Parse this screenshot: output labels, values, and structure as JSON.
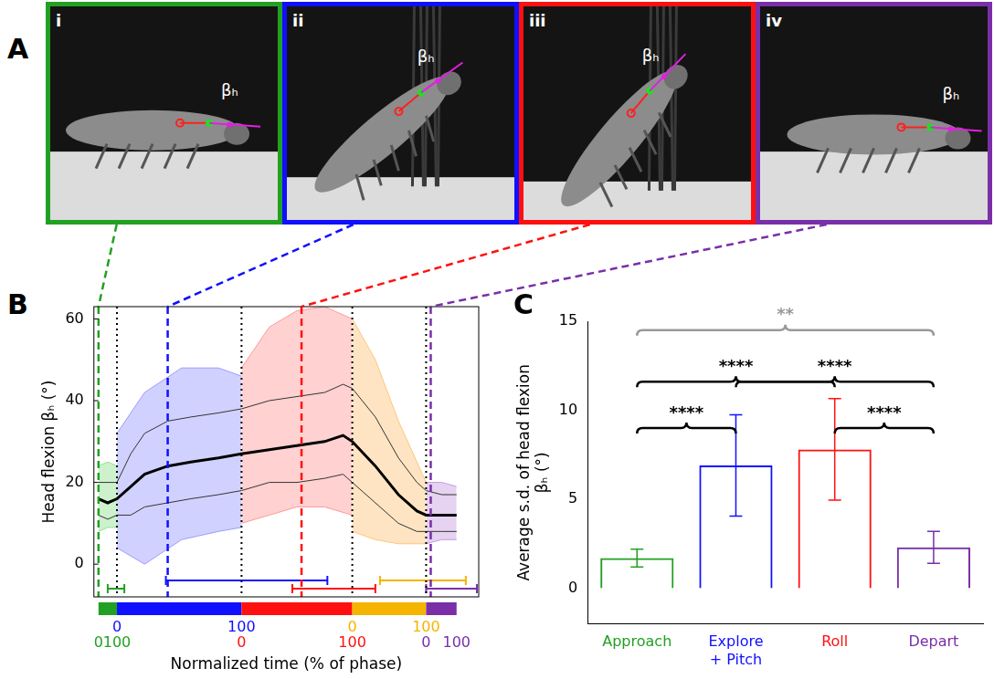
{
  "photos": {
    "panel": "A",
    "angle_label": "βₕ",
    "frames": [
      {
        "label": "i",
        "color": "#22a022"
      },
      {
        "label": "ii",
        "color": "#1010ff"
      },
      {
        "label": "iii",
        "color": "#ff1010"
      },
      {
        "label": "iv",
        "color": "#7a2fa8"
      }
    ]
  },
  "chart_data": [
    {
      "panel": "B",
      "type": "line",
      "x_label": "Normalized time (% of phase)",
      "y_label": "Head flexion βₕ (°)",
      "xlim": [
        -5,
        412
      ],
      "ylim": [
        -8,
        63
      ],
      "yticks": [
        0,
        20,
        40,
        60
      ],
      "tick_labels": "y",
      "grid": false,
      "mean": {
        "color": "#000000",
        "x": [
          0,
          10,
          20,
          35,
          50,
          75,
          100,
          130,
          155,
          185,
          215,
          245,
          265,
          275,
          300,
          325,
          345,
          355,
          372,
          388
        ],
        "values": [
          16,
          15,
          16,
          19,
          22,
          24,
          25,
          26,
          27,
          28,
          29,
          30,
          31.5,
          30,
          24,
          17,
          13,
          12,
          12,
          12
        ],
        "sd_color": "#333333",
        "sd_upper": [
          20,
          20,
          20,
          27,
          32,
          35,
          36,
          37,
          38,
          40,
          41,
          42,
          44,
          43,
          36,
          26,
          20,
          18,
          17,
          17
        ],
        "sd_lower": [
          12,
          11,
          12,
          12,
          14,
          15,
          16,
          17,
          18,
          20,
          20,
          21,
          22,
          20,
          15,
          10,
          8,
          8,
          8,
          8
        ]
      },
      "phases": [
        {
          "color": "#22a022",
          "light_color": "#8fe08f",
          "start": 0,
          "end": 20,
          "start_label": "0",
          "end_label": "100",
          "trial_range": {
            "x": [
              0,
              10,
              20
            ],
            "low": [
              8,
              9,
              9
            ],
            "high": [
              24,
              25,
              24
            ]
          },
          "timing_range": {
            "start": 10,
            "end": 28,
            "y": -6
          }
        },
        {
          "color": "#1010ff",
          "light_color": "#9a9aff",
          "start": 20,
          "end": 155,
          "start_label": "0",
          "end_label": "100",
          "trial_range": {
            "x": [
              20,
              50,
              90,
              130,
              155
            ],
            "low": [
              4,
              0,
              6,
              8,
              9
            ],
            "high": [
              32,
              42,
              48,
              48,
              46
            ]
          },
          "timing_range": {
            "start": 73,
            "end": 248,
            "y": -4
          }
        },
        {
          "color": "#ff1010",
          "light_color": "#ff9a9a",
          "start": 155,
          "end": 275,
          "start_label": "0",
          "end_label": "100",
          "trial_range": {
            "x": [
              155,
              185,
              215,
              245,
              275
            ],
            "low": [
              10,
              12,
              14,
              14,
              12
            ],
            "high": [
              48,
              58,
              62,
              63,
              60
            ]
          },
          "timing_range": {
            "start": 210,
            "end": 300,
            "y": -6
          }
        },
        {
          "color": "#f5b400",
          "light_color": "#ffc47a",
          "start": 275,
          "end": 355,
          "start_label": "0",
          "end_label": "100",
          "trial_range": {
            "x": [
              275,
              300,
              325,
              355
            ],
            "low": [
              8,
              6,
              5,
              5
            ],
            "high": [
              60,
              50,
              35,
              20
            ]
          },
          "timing_range": {
            "start": 305,
            "end": 398,
            "y": -4
          }
        },
        {
          "color": "#7a2fa8",
          "light_color": "#c79be0",
          "start": 355,
          "end": 388,
          "start_label": "0",
          "end_label": "100",
          "trial_range": {
            "x": [
              355,
              372,
              388
            ],
            "low": [
              5,
              6,
              6
            ],
            "high": [
              20,
              20,
              19
            ]
          },
          "timing_range": {
            "start": 355,
            "end": 410,
            "y": -6
          }
        }
      ],
      "snapshots": [
        {
          "x": 0,
          "color": "#22a022"
        },
        {
          "x": 75,
          "color": "#1010ff"
        },
        {
          "x": 220,
          "color": "#ff1010"
        },
        {
          "x": 360,
          "color": "#7a2fa8"
        }
      ]
    },
    {
      "panel": "C",
      "type": "bar",
      "categories": [
        "Approach",
        "Explore + Pitch",
        "Roll",
        "Depart"
      ],
      "values": [
        1.7,
        6.9,
        7.8,
        2.3
      ],
      "errors": [
        0.5,
        2.85,
        2.85,
        0.9
      ],
      "colors": [
        "#22a022",
        "#1010ff",
        "#ff1010",
        "#7a2fa8"
      ],
      "y_label": "Average s.d. of head flexion βₕ (°)",
      "ylim": [
        -2,
        15
      ],
      "yticks": [
        0,
        5,
        10,
        15
      ],
      "grid": false,
      "comparisons": [
        {
          "pair": [
            "Approach",
            "Depart"
          ],
          "label": "**",
          "y": 14.5,
          "color": "#999999"
        },
        {
          "pair": [
            "Approach",
            "Roll"
          ],
          "label": "****",
          "y": 11.6,
          "color": "#000000"
        },
        {
          "pair": [
            "Explore + Pitch",
            "Depart"
          ],
          "label": "****",
          "y": 11.6,
          "color": "#000000"
        },
        {
          "pair": [
            "Approach",
            "Explore + Pitch"
          ],
          "label": "****",
          "y": 9.0,
          "color": "#000000"
        },
        {
          "pair": [
            "Roll",
            "Depart"
          ],
          "label": "****",
          "y": 9.0,
          "color": "#000000"
        }
      ]
    }
  ]
}
